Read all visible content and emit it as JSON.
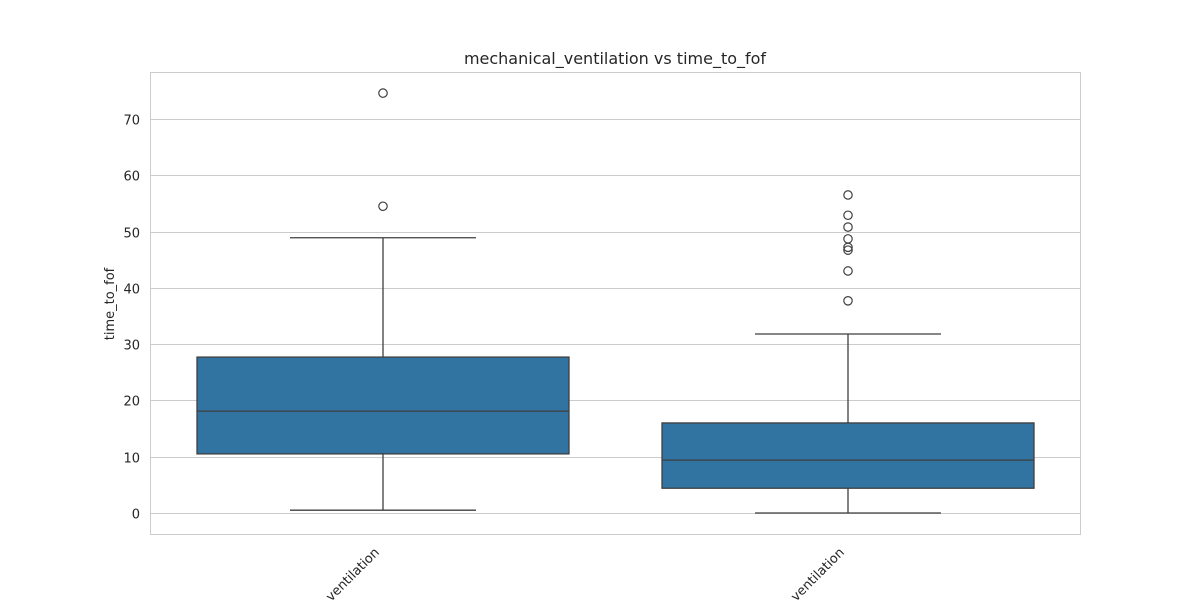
{
  "chart_data": {
    "type": "box",
    "title": "mechanical_ventilation vs time_to_fof",
    "xlabel": "",
    "ylabel": "time_to_fof",
    "ylim": [
      -3.7,
      78.3
    ],
    "yticks": [
      0,
      10,
      20,
      30,
      40,
      50,
      60,
      70
    ],
    "grid": true,
    "categories": [
      "ventilation",
      "ventilation"
    ],
    "box_color": "#3274a1",
    "series": [
      {
        "name": "ventilation",
        "whisker_low": 0.5,
        "q1": 10.5,
        "median": 18.1,
        "q3": 27.7,
        "whisker_high": 48.9,
        "outliers": [
          54.5,
          74.6
        ]
      },
      {
        "name": "ventilation",
        "whisker_low": 0.0,
        "q1": 4.4,
        "median": 9.4,
        "q3": 16.0,
        "whisker_high": 31.8,
        "outliers": [
          37.7,
          43.0,
          46.7,
          47.2,
          48.7,
          50.8,
          52.9,
          56.5
        ]
      }
    ]
  }
}
